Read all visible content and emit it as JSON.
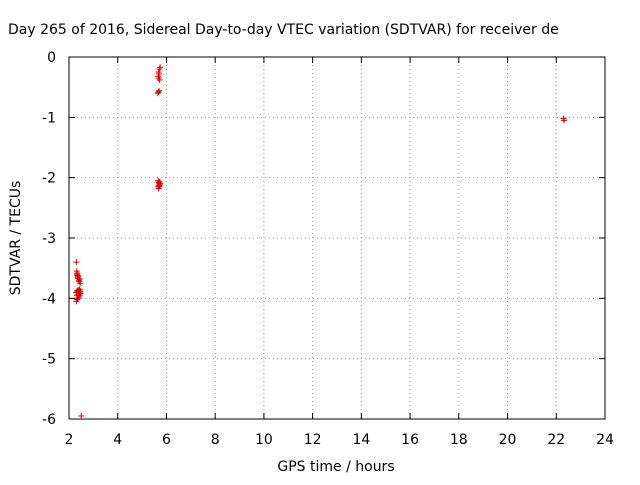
{
  "chart_data": {
    "type": "scatter",
    "title": "Day 265 of 2016, Sidereal Day-to-day VTEC variation (SDTVAR) for receiver de",
    "xlabel": "GPS time / hours",
    "ylabel": "SDTVAR / TECUs",
    "xlim": [
      2,
      24
    ],
    "ylim": [
      -6,
      0
    ],
    "xticks": [
      "2",
      "4",
      "6",
      "8",
      "10",
      "12",
      "14",
      "16",
      "18",
      "20",
      "22",
      "24"
    ],
    "yticks": [
      "0",
      "-1",
      "-2",
      "-3",
      "-4",
      "-5",
      "-6"
    ],
    "grid": true,
    "marker": "+",
    "marker_color": "#e00000",
    "series": [
      {
        "x": [
          2.3,
          2.32,
          2.33,
          2.34,
          2.35,
          2.36,
          2.37,
          2.38,
          2.4,
          2.42,
          2.44,
          2.46,
          2.3,
          2.33,
          2.36,
          2.4,
          2.44,
          2.47,
          2.3,
          2.33,
          2.36,
          2.4,
          2.44,
          2.47,
          2.33,
          2.38,
          2.44,
          2.5,
          5.65,
          5.67,
          5.7,
          5.72,
          5.68,
          5.66,
          5.7,
          5.68,
          5.72,
          5.74,
          5.66,
          5.68,
          5.7,
          5.72,
          5.66,
          5.7,
          5.74,
          5.68,
          5.72,
          5.7,
          22.3,
          22.32
        ],
        "y": [
          -3.4,
          -3.55,
          -3.6,
          -3.58,
          -3.62,
          -3.65,
          -3.63,
          -3.67,
          -3.7,
          -3.72,
          -3.68,
          -3.75,
          -4.05,
          -4.02,
          -4.0,
          -3.98,
          -3.95,
          -3.92,
          -3.9,
          -3.88,
          -3.87,
          -3.86,
          -3.85,
          -3.88,
          -3.95,
          -3.93,
          -3.9,
          -5.95,
          -0.6,
          -0.58,
          -0.56,
          -0.38,
          -0.35,
          -0.32,
          -0.28,
          -0.25,
          -0.2,
          -0.17,
          -2.05,
          -2.08,
          -2.1,
          -2.12,
          -2.15,
          -2.13,
          -2.1,
          -2.18,
          -2.07,
          -2.15,
          -1.02,
          -1.05
        ]
      }
    ]
  }
}
